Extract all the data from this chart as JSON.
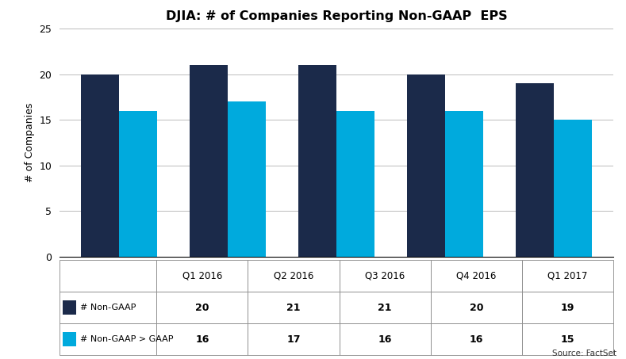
{
  "title": "DJIA: # of Companies Reporting Non-GAAP  EPS",
  "categories": [
    "Q1 2016",
    "Q2 2016",
    "Q3 2016",
    "Q4 2016",
    "Q1 2017"
  ],
  "non_gaap": [
    20,
    21,
    21,
    20,
    19
  ],
  "non_gaap_gt_gaap": [
    16,
    17,
    16,
    16,
    15
  ],
  "color_non_gaap": "#1b2a4a",
  "color_gt_gaap": "#00aadd",
  "ylabel": "# of Companies",
  "ylim": [
    0,
    25
  ],
  "yticks": [
    0,
    5,
    10,
    15,
    20,
    25
  ],
  "legend_non_gaap": "■# Non-GAAP",
  "legend_gt_gaap": "■# Non-GAAP > GAAP",
  "source_text": "Source: FactSet",
  "bar_width": 0.35,
  "table_row0": [
    "",
    "Q1 2016",
    "Q2 2016",
    "Q3 2016",
    "Q4 2016",
    "Q1 2017"
  ],
  "table_row1": [
    "# Non-GAAP",
    "20",
    "21",
    "21",
    "20",
    "19"
  ],
  "table_row2": [
    "# Non-GAAP > GAAP",
    "16",
    "17",
    "16",
    "16",
    "15"
  ]
}
